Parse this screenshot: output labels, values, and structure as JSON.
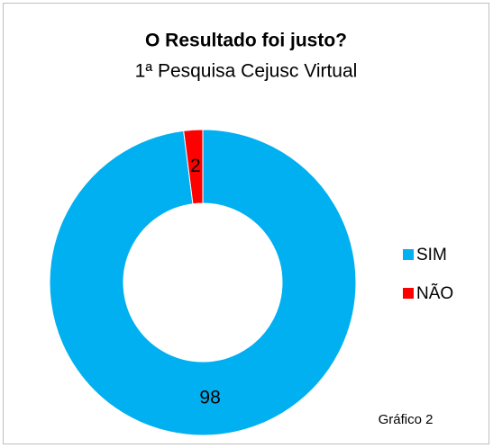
{
  "chart_data": {
    "type": "donut",
    "title": "O Resultado foi justo?",
    "subtitle": "1ª Pesquisa Cejusc Virtual",
    "categories": [
      "SIM",
      "NÃO"
    ],
    "values": [
      98,
      2
    ],
    "colors": [
      "#00b0f0",
      "#ff0000"
    ],
    "legend": "right",
    "annotation": "Gráfico 2"
  }
}
